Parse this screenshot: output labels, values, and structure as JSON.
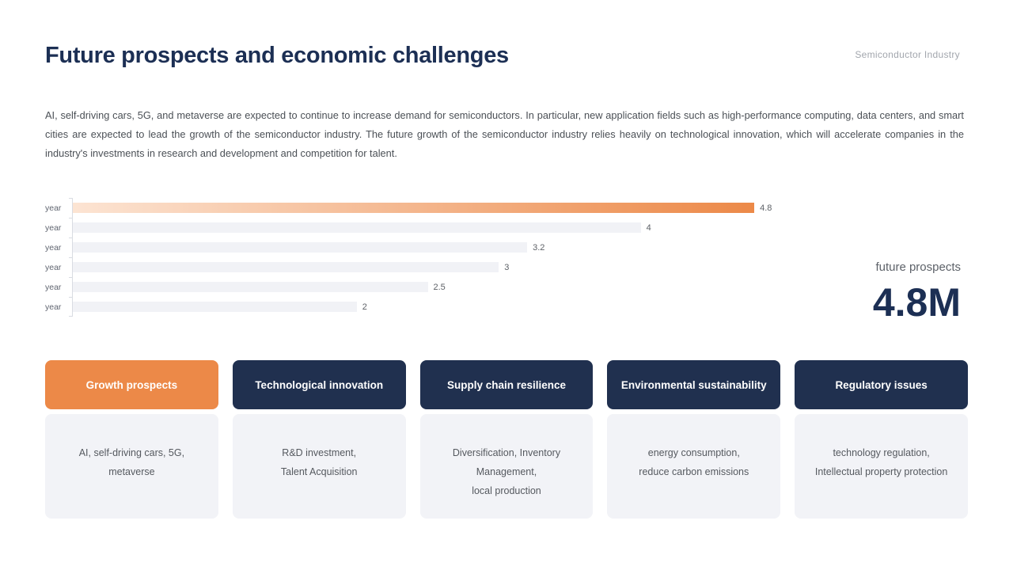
{
  "header": {
    "title": "Future prospects and economic challenges",
    "tag": "Semiconductor Industry"
  },
  "intro": {
    "text": "AI, self-driving cars, 5G, and metaverse are expected to continue to increase demand for semiconductors. In particular, new application fields such as high-performance computing, data centers, and smart cities are expected to lead the growth of the semiconductor industry. The future growth of the semiconductor industry relies heavily on technological innovation, which will accelerate companies in the industry's investments in research and development and competition for talent."
  },
  "chart_data": {
    "type": "bar",
    "orientation": "horizontal",
    "categories": [
      "year",
      "year",
      "year",
      "year",
      "year",
      "year"
    ],
    "values": [
      4.8,
      4,
      3.2,
      3,
      2.5,
      2
    ],
    "value_labels": [
      "4.8",
      "4",
      "3.2",
      "3",
      "2.5",
      "2"
    ],
    "xlim": [
      0,
      5
    ],
    "highlight_index": 0,
    "grid": false,
    "legend": false,
    "colors": {
      "highlight_gradient_start": "#fce4d3",
      "highlight_gradient_end": "#ec8948",
      "bar": "#f1f2f6",
      "axis": "#d9dce2",
      "value_label": "#5d6167",
      "category_label": "#606570"
    }
  },
  "metric": {
    "label": "future prospects",
    "value": "4.8M"
  },
  "cards": [
    {
      "title": "Growth prospects",
      "body": "AI, self-driving cars, 5G,\nmetaverse",
      "accent": "#ec8948"
    },
    {
      "title": "Technological innovation",
      "body": "R&D investment,\nTalent Acquisition",
      "accent": "#20304f"
    },
    {
      "title": "Supply chain resilience",
      "body": "Diversification, Inventory\nManagement,\nlocal production",
      "accent": "#20304f"
    },
    {
      "title": "Environmental sustainability",
      "body": "energy consumption,\nreduce carbon emissions",
      "accent": "#20304f"
    },
    {
      "title": "Regulatory issues",
      "body": "technology regulation,\nIntellectual property protection",
      "accent": "#20304f"
    }
  ],
  "colors": {
    "navy": "#20304f",
    "orange": "#ec8948",
    "title_text": "#1c2f54",
    "card_body_bg": "#f2f3f7"
  }
}
